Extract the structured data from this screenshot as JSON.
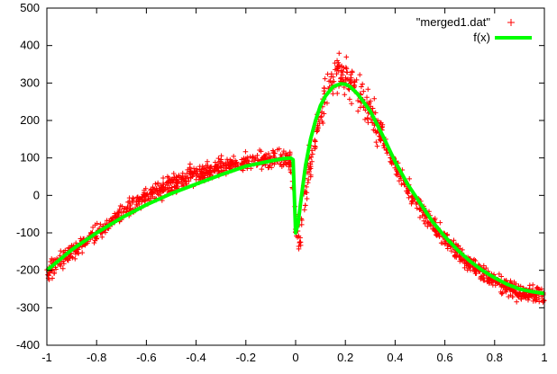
{
  "chart_data": {
    "type": "scatter",
    "title": "",
    "xlabel": "",
    "ylabel": "",
    "xlim": [
      -1,
      1
    ],
    "ylim": [
      -400,
      500
    ],
    "x_ticks": [
      -1,
      -0.8,
      -0.6,
      -0.4,
      -0.2,
      0,
      0.2,
      0.4,
      0.6,
      0.8,
      1
    ],
    "x_tick_labels": [
      "-1",
      "-0.8",
      "-0.6",
      "-0.4",
      "-0.2",
      "0",
      "0.2",
      "0.4",
      "0.6",
      "0.8",
      "1"
    ],
    "y_ticks": [
      -400,
      -300,
      -200,
      -100,
      0,
      100,
      200,
      300,
      400,
      500
    ],
    "y_tick_labels": [
      "-400",
      "-300",
      "-200",
      "-100",
      "0",
      "100",
      "200",
      "300",
      "400",
      "500"
    ],
    "grid": false,
    "legend_position": "top-right",
    "series": [
      {
        "name": "\"merged1.dat\"",
        "type": "scatter",
        "marker": "+",
        "color": "#ff0000",
        "noise": 22,
        "points_per_step": 2,
        "x": [
          -1.0,
          -0.95,
          -0.9,
          -0.85,
          -0.8,
          -0.75,
          -0.7,
          -0.65,
          -0.6,
          -0.55,
          -0.5,
          -0.45,
          -0.4,
          -0.35,
          -0.3,
          -0.25,
          -0.2,
          -0.15,
          -0.1,
          -0.05,
          -0.02,
          0.0,
          0.01,
          0.02,
          0.03,
          0.05,
          0.08,
          0.1,
          0.12,
          0.15,
          0.18,
          0.2,
          0.22,
          0.25,
          0.3,
          0.35,
          0.4,
          0.45,
          0.5,
          0.55,
          0.6,
          0.65,
          0.7,
          0.75,
          0.8,
          0.85,
          0.9,
          0.95,
          1.0
        ],
        "y": [
          -205,
          -180,
          -150,
          -125,
          -100,
          -75,
          -50,
          -28,
          -5,
          12,
          30,
          45,
          55,
          65,
          75,
          85,
          88,
          92,
          95,
          98,
          95,
          -80,
          -120,
          -110,
          -20,
          60,
          150,
          220,
          270,
          310,
          330,
          320,
          305,
          280,
          220,
          150,
          80,
          20,
          -30,
          -75,
          -115,
          -150,
          -180,
          -205,
          -225,
          -245,
          -258,
          -265,
          -270
        ]
      },
      {
        "name": "f(x)",
        "type": "line",
        "color": "#00ff00",
        "x": [
          -1.0,
          -0.9,
          -0.8,
          -0.7,
          -0.6,
          -0.5,
          -0.4,
          -0.3,
          -0.2,
          -0.1,
          -0.05,
          -0.02,
          -0.01,
          0.0,
          0.01,
          0.02,
          0.04,
          0.06,
          0.08,
          0.1,
          0.12,
          0.15,
          0.18,
          0.2,
          0.22,
          0.25,
          0.3,
          0.35,
          0.4,
          0.45,
          0.5,
          0.55,
          0.6,
          0.65,
          0.7,
          0.75,
          0.8,
          0.85,
          0.9,
          0.95,
          1.0
        ],
        "y": [
          -200,
          -145,
          -100,
          -60,
          -25,
          5,
          30,
          55,
          78,
          92,
          98,
          100,
          95,
          -100,
          -75,
          -20,
          80,
          150,
          200,
          240,
          265,
          290,
          298,
          297,
          290,
          270,
          225,
          160,
          90,
          30,
          -20,
          -70,
          -110,
          -145,
          -175,
          -200,
          -220,
          -237,
          -250,
          -257,
          -262
        ]
      }
    ]
  }
}
